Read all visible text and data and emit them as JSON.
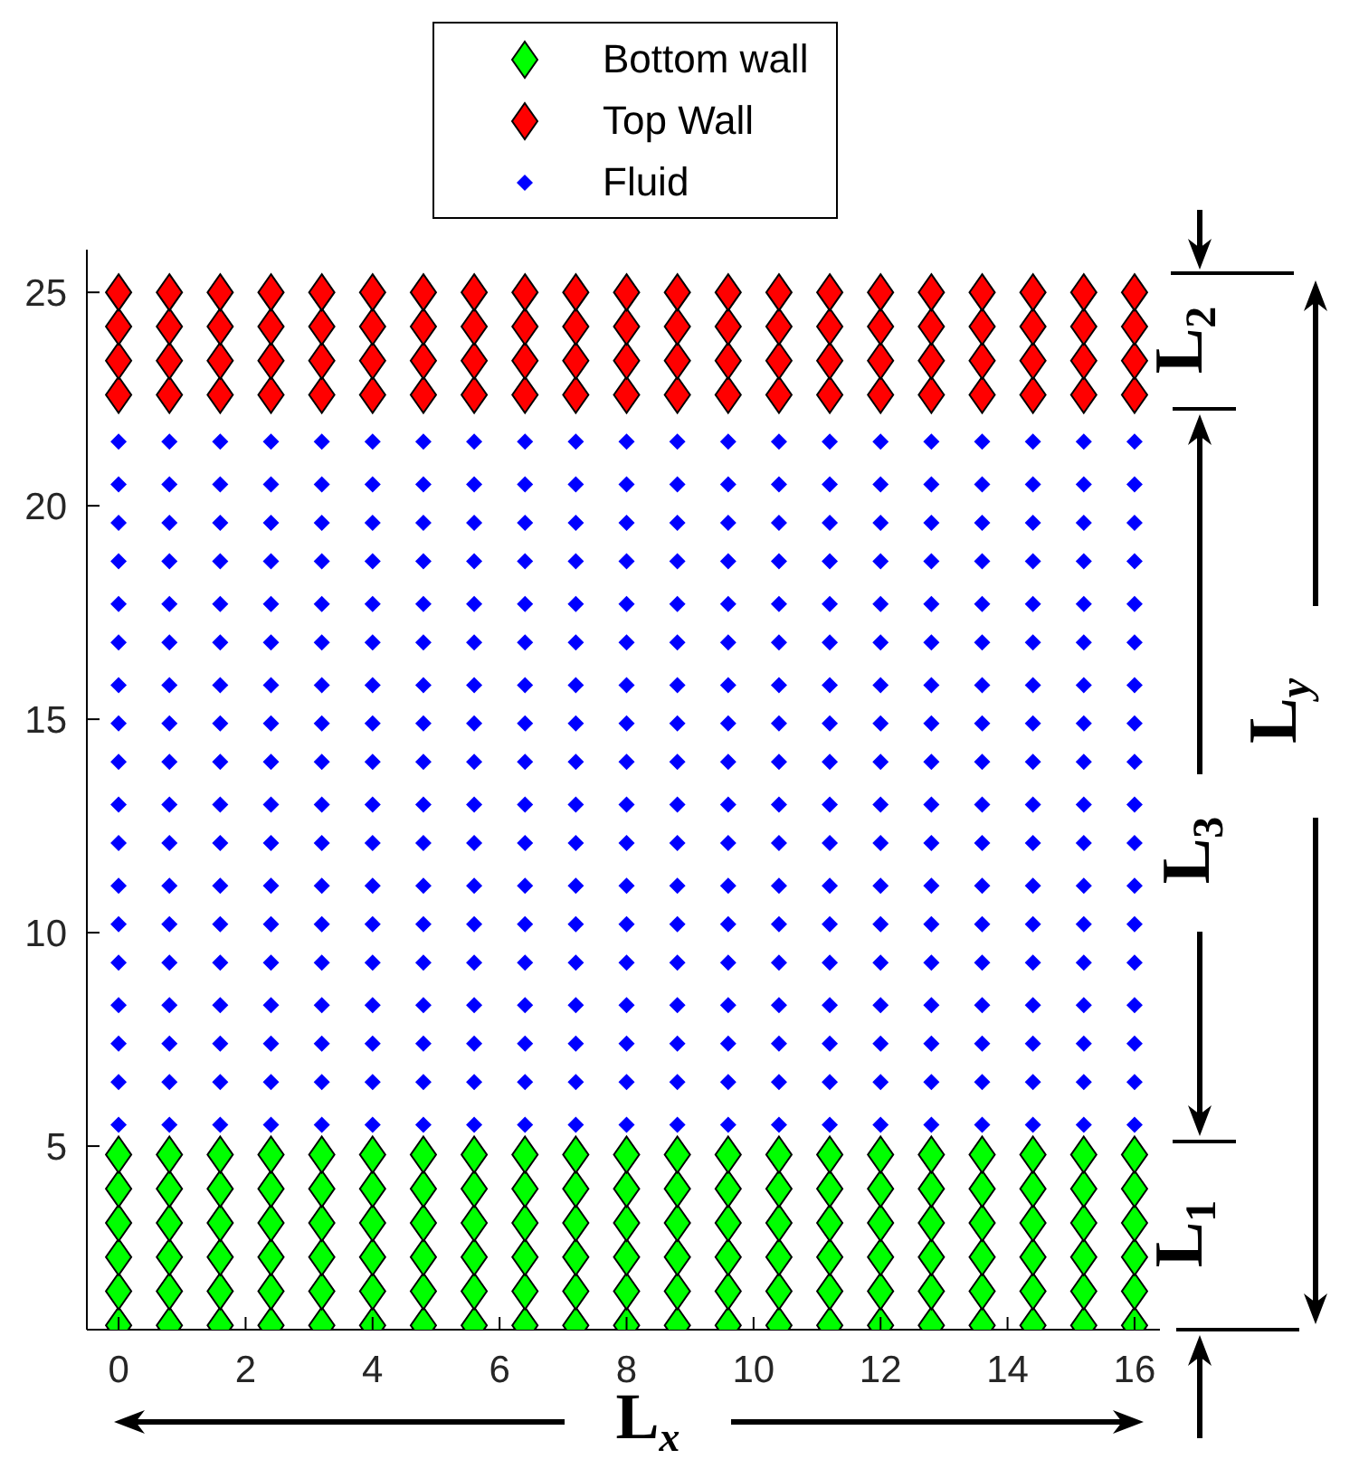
{
  "chart_data": {
    "type": "scatter",
    "legend": "top",
    "marker": "diamond",
    "xlim": [
      -0.5,
      16.4
    ],
    "xticks": [
      0,
      2,
      4,
      6,
      8,
      10,
      12,
      14,
      16
    ],
    "ylim": [
      0.7,
      26
    ],
    "yticks": [
      5,
      10,
      15,
      20,
      25
    ],
    "annotations": [
      "L$_{2}$",
      "L$_{y}$",
      "L$_{3}$",
      "L$_{1}$",
      "L$_{x}$"
    ],
    "series": [
      {
        "name": "Bottom wall",
        "color": "#00ff00",
        "x": [
          0,
          0.8,
          1.6,
          2.4,
          3.2,
          4,
          4.8,
          5.6,
          6.4,
          7.2,
          8,
          8.8,
          9.6,
          10.4,
          11.2,
          12,
          12.8,
          13.6,
          14.4,
          15.2,
          16,
          0,
          0.8,
          1.6,
          2.4,
          3.2,
          4,
          4.8,
          5.6,
          6.4,
          7.2,
          8,
          8.8,
          9.6,
          10.4,
          11.2,
          12,
          12.8,
          13.6,
          14.4,
          15.2,
          16,
          0,
          0.8,
          1.6,
          2.4,
          3.2,
          4,
          4.8,
          5.6,
          6.4,
          7.2,
          8,
          8.8,
          9.6,
          10.4,
          11.2,
          12,
          12.8,
          13.6,
          14.4,
          15.2,
          16,
          0,
          0.8,
          1.6,
          2.4,
          3.2,
          4,
          4.8,
          5.6,
          6.4,
          7.2,
          8,
          8.8,
          9.6,
          10.4,
          11.2,
          12,
          12.8,
          13.6,
          14.4,
          15.2,
          16,
          0,
          0.8,
          1.6,
          2.4,
          3.2,
          4,
          4.8,
          5.6,
          6.4,
          7.2,
          8,
          8.8,
          9.6,
          10.4,
          11.2,
          12,
          12.8,
          13.6,
          14.4,
          15.2,
          16,
          0,
          0.8,
          1.6,
          2.4,
          3.2,
          4,
          4.8,
          5.6,
          6.4,
          7.2,
          8,
          8.8,
          9.6,
          10.4,
          11.2,
          12,
          12.8,
          13.6,
          14.4,
          15.2,
          16
        ],
        "values": [
          0.8,
          0.8,
          0.8,
          0.8,
          0.8,
          0.8,
          0.8,
          0.8,
          0.8,
          0.8,
          0.8,
          0.8,
          0.8,
          0.8,
          0.8,
          0.8,
          0.8,
          0.8,
          0.8,
          0.8,
          0.8,
          1.6,
          1.6,
          1.6,
          1.6,
          1.6,
          1.6,
          1.6,
          1.6,
          1.6,
          1.6,
          1.6,
          1.6,
          1.6,
          1.6,
          1.6,
          1.6,
          1.6,
          1.6,
          1.6,
          1.6,
          1.6,
          2.4,
          2.4,
          2.4,
          2.4,
          2.4,
          2.4,
          2.4,
          2.4,
          2.4,
          2.4,
          2.4,
          2.4,
          2.4,
          2.4,
          2.4,
          2.4,
          2.4,
          2.4,
          2.4,
          2.4,
          2.4,
          3.2,
          3.2,
          3.2,
          3.2,
          3.2,
          3.2,
          3.2,
          3.2,
          3.2,
          3.2,
          3.2,
          3.2,
          3.2,
          3.2,
          3.2,
          3.2,
          3.2,
          3.2,
          3.2,
          3.2,
          3.2,
          4,
          4,
          4,
          4,
          4,
          4,
          4,
          4,
          4,
          4,
          4,
          4,
          4,
          4,
          4,
          4,
          4,
          4,
          4,
          4,
          4,
          4.8,
          4.8,
          4.8,
          4.8,
          4.8,
          4.8,
          4.8,
          4.8,
          4.8,
          4.8,
          4.8,
          4.8,
          4.8,
          4.8,
          4.8,
          4.8,
          4.8,
          4.8,
          4.8,
          4.8,
          4.8
        ]
      },
      {
        "name": "Top Wall",
        "color": "#ff0000",
        "x": [
          0,
          0.8,
          1.6,
          2.4,
          3.2,
          4,
          4.8,
          5.6,
          6.4,
          7.2,
          8,
          8.8,
          9.6,
          10.4,
          11.2,
          12,
          12.8,
          13.6,
          14.4,
          15.2,
          16,
          0,
          0.8,
          1.6,
          2.4,
          3.2,
          4,
          4.8,
          5.6,
          6.4,
          7.2,
          8,
          8.8,
          9.6,
          10.4,
          11.2,
          12,
          12.8,
          13.6,
          14.4,
          15.2,
          16,
          0,
          0.8,
          1.6,
          2.4,
          3.2,
          4,
          4.8,
          5.6,
          6.4,
          7.2,
          8,
          8.8,
          9.6,
          10.4,
          11.2,
          12,
          12.8,
          13.6,
          14.4,
          15.2,
          16,
          0,
          0.8,
          1.6,
          2.4,
          3.2,
          4,
          4.8,
          5.6,
          6.4,
          7.2,
          8,
          8.8,
          9.6,
          10.4,
          11.2,
          12,
          12.8,
          13.6,
          14.4,
          15.2,
          16
        ],
        "values": [
          22.6,
          22.6,
          22.6,
          22.6,
          22.6,
          22.6,
          22.6,
          22.6,
          22.6,
          22.6,
          22.6,
          22.6,
          22.6,
          22.6,
          22.6,
          22.6,
          22.6,
          22.6,
          22.6,
          22.6,
          22.6,
          23.4,
          23.4,
          23.4,
          23.4,
          23.4,
          23.4,
          23.4,
          23.4,
          23.4,
          23.4,
          23.4,
          23.4,
          23.4,
          23.4,
          23.4,
          23.4,
          23.4,
          23.4,
          23.4,
          23.4,
          23.4,
          24.2,
          24.2,
          24.2,
          24.2,
          24.2,
          24.2,
          24.2,
          24.2,
          24.2,
          24.2,
          24.2,
          24.2,
          24.2,
          24.2,
          24.2,
          24.2,
          24.2,
          24.2,
          24.2,
          24.2,
          24.2,
          25,
          25,
          25,
          25,
          25,
          25,
          25,
          25,
          25,
          25,
          25,
          25,
          25,
          25,
          25,
          25,
          25,
          25,
          25,
          25,
          25
        ]
      },
      {
        "name": "Fluid",
        "color": "#0000ff",
        "x": [
          0,
          0.8,
          1.6,
          2.4,
          3.2,
          4,
          4.8,
          5.6,
          6.4,
          7.2,
          8,
          8.8,
          9.6,
          10.4,
          11.2,
          12,
          12.8,
          13.6,
          14.4,
          15.2,
          16,
          0,
          0.8,
          1.6,
          2.4,
          3.2,
          4,
          4.8,
          5.6,
          6.4,
          7.2,
          8,
          8.8,
          9.6,
          10.4,
          11.2,
          12,
          12.8,
          13.6,
          14.4,
          15.2,
          16,
          0,
          0.8,
          1.6,
          2.4,
          3.2,
          4,
          4.8,
          5.6,
          6.4,
          7.2,
          8,
          8.8,
          9.6,
          10.4,
          11.2,
          12,
          12.8,
          13.6,
          14.4,
          15.2,
          16,
          0,
          0.8,
          1.6,
          2.4,
          3.2,
          4,
          4.8,
          5.6,
          6.4,
          7.2,
          8,
          8.8,
          9.6,
          10.4,
          11.2,
          12,
          12.8,
          13.6,
          14.4,
          15.2,
          16,
          0,
          0.8,
          1.6,
          2.4,
          3.2,
          4,
          4.8,
          5.6,
          6.4,
          7.2,
          8,
          8.8,
          9.6,
          10.4,
          11.2,
          12,
          12.8,
          13.6,
          14.4,
          15.2,
          16,
          0,
          0.8,
          1.6,
          2.4,
          3.2,
          4,
          4.8,
          5.6,
          6.4,
          7.2,
          8,
          8.8,
          9.6,
          10.4,
          11.2,
          12,
          12.8,
          13.6,
          14.4,
          15.2,
          16,
          0,
          0.8,
          1.6,
          2.4,
          3.2,
          4,
          4.8,
          5.6,
          6.4,
          7.2,
          8,
          8.8,
          9.6,
          10.4,
          11.2,
          12,
          12.8,
          13.6,
          14.4,
          15.2,
          16,
          0,
          0.8,
          1.6,
          2.4,
          3.2,
          4,
          4.8,
          5.6,
          6.4,
          7.2,
          8,
          8.8,
          9.6,
          10.4,
          11.2,
          12,
          12.8,
          13.6,
          14.4,
          15.2,
          16,
          0,
          0.8,
          1.6,
          2.4,
          3.2,
          4,
          4.8,
          5.6,
          6.4,
          7.2,
          8,
          8.8,
          9.6,
          10.4,
          11.2,
          12,
          12.8,
          13.6,
          14.4,
          15.2,
          16,
          0,
          0.8,
          1.6,
          2.4,
          3.2,
          4,
          4.8,
          5.6,
          6.4,
          7.2,
          8,
          8.8,
          9.6,
          10.4,
          11.2,
          12,
          12.8,
          13.6,
          14.4,
          15.2,
          16,
          0,
          0.8,
          1.6,
          2.4,
          3.2,
          4,
          4.8,
          5.6,
          6.4,
          7.2,
          8,
          8.8,
          9.6,
          10.4,
          11.2,
          12,
          12.8,
          13.6,
          14.4,
          15.2,
          16,
          0,
          0.8,
          1.6,
          2.4,
          3.2,
          4,
          4.8,
          5.6,
          6.4,
          7.2,
          8,
          8.8,
          9.6,
          10.4,
          11.2,
          12,
          12.8,
          13.6,
          14.4,
          15.2,
          16,
          0,
          0.8,
          1.6,
          2.4,
          3.2,
          4,
          4.8,
          5.6,
          6.4,
          7.2,
          8,
          8.8,
          9.6,
          10.4,
          11.2,
          12,
          12.8,
          13.6,
          14.4,
          15.2,
          16,
          0,
          0.8,
          1.6,
          2.4,
          3.2,
          4,
          4.8,
          5.6,
          6.4,
          7.2,
          8,
          8.8,
          9.6,
          10.4,
          11.2,
          12,
          12.8,
          13.6,
          14.4,
          15.2,
          16,
          0,
          0.8,
          1.6,
          2.4,
          3.2,
          4,
          4.8,
          5.6,
          6.4,
          7.2,
          8,
          8.8,
          9.6,
          10.4,
          11.2,
          12,
          12.8,
          13.6,
          14.4,
          15.2,
          16,
          0,
          0.8,
          1.6,
          2.4,
          3.2,
          4,
          4.8,
          5.6,
          6.4,
          7.2,
          8,
          8.8,
          9.6,
          10.4,
          11.2,
          12,
          12.8,
          13.6,
          14.4,
          15.2,
          16,
          0,
          0.8,
          1.6,
          2.4,
          3.2,
          4,
          4.8,
          5.6,
          6.4,
          7.2,
          8,
          8.8,
          9.6,
          10.4,
          11.2,
          12,
          12.8,
          13.6,
          14.4,
          15.2,
          16,
          0,
          0.8,
          1.6,
          2.4,
          3.2,
          4,
          4.8,
          5.6,
          6.4,
          7.2,
          8,
          8.8,
          9.6,
          10.4,
          11.2,
          12,
          12.8,
          13.6,
          14.4,
          15.2,
          16
        ],
        "values": [
          5.5,
          5.5,
          5.5,
          5.5,
          5.5,
          5.5,
          5.5,
          5.5,
          5.5,
          5.5,
          5.5,
          5.5,
          5.5,
          5.5,
          5.5,
          5.5,
          5.5,
          5.5,
          5.5,
          5.5,
          5.5,
          6.5,
          6.5,
          6.5,
          6.5,
          6.5,
          6.5,
          6.5,
          6.5,
          6.5,
          6.5,
          6.5,
          6.5,
          6.5,
          6.5,
          6.5,
          6.5,
          6.5,
          6.5,
          6.5,
          6.5,
          6.5,
          7.4,
          7.4,
          7.4,
          7.4,
          7.4,
          7.4,
          7.4,
          7.4,
          7.4,
          7.4,
          7.4,
          7.4,
          7.4,
          7.4,
          7.4,
          7.4,
          7.4,
          7.4,
          7.4,
          7.4,
          7.4,
          8.3,
          8.3,
          8.3,
          8.3,
          8.3,
          8.3,
          8.3,
          8.3,
          8.3,
          8.3,
          8.3,
          8.3,
          8.3,
          8.3,
          8.3,
          8.3,
          8.3,
          8.3,
          8.3,
          8.3,
          8.3,
          9.3,
          9.3,
          9.3,
          9.3,
          9.3,
          9.3,
          9.3,
          9.3,
          9.3,
          9.3,
          9.3,
          9.3,
          9.3,
          9.3,
          9.3,
          9.3,
          9.3,
          9.3,
          9.3,
          9.3,
          9.3,
          10.2,
          10.2,
          10.2,
          10.2,
          10.2,
          10.2,
          10.2,
          10.2,
          10.2,
          10.2,
          10.2,
          10.2,
          10.2,
          10.2,
          10.2,
          10.2,
          10.2,
          10.2,
          10.2,
          10.2,
          10.2,
          11.1,
          11.1,
          11.1,
          11.1,
          11.1,
          11.1,
          11.1,
          11.1,
          11.1,
          11.1,
          11.1,
          11.1,
          11.1,
          11.1,
          11.1,
          11.1,
          11.1,
          11.1,
          11.1,
          11.1,
          11.1,
          12.1,
          12.1,
          12.1,
          12.1,
          12.1,
          12.1,
          12.1,
          12.1,
          12.1,
          12.1,
          12.1,
          12.1,
          12.1,
          12.1,
          12.1,
          12.1,
          12.1,
          12.1,
          12.1,
          12.1,
          12.1,
          13,
          13,
          13,
          13,
          13,
          13,
          13,
          13,
          13,
          13,
          13,
          13,
          13,
          13,
          13,
          13,
          13,
          13,
          13,
          13,
          13,
          14,
          14,
          14,
          14,
          14,
          14,
          14,
          14,
          14,
          14,
          14,
          14,
          14,
          14,
          14,
          14,
          14,
          14,
          14,
          14,
          14,
          14.9,
          14.9,
          14.9,
          14.9,
          14.9,
          14.9,
          14.9,
          14.9,
          14.9,
          14.9,
          14.9,
          14.9,
          14.9,
          14.9,
          14.9,
          14.9,
          14.9,
          14.9,
          14.9,
          14.9,
          14.9,
          15.8,
          15.8,
          15.8,
          15.8,
          15.8,
          15.8,
          15.8,
          15.8,
          15.8,
          15.8,
          15.8,
          15.8,
          15.8,
          15.8,
          15.8,
          15.8,
          15.8,
          15.8,
          15.8,
          15.8,
          15.8,
          16.8,
          16.8,
          16.8,
          16.8,
          16.8,
          16.8,
          16.8,
          16.8,
          16.8,
          16.8,
          16.8,
          16.8,
          16.8,
          16.8,
          16.8,
          16.8,
          16.8,
          16.8,
          16.8,
          16.8,
          16.8,
          17.7,
          17.7,
          17.7,
          17.7,
          17.7,
          17.7,
          17.7,
          17.7,
          17.7,
          17.7,
          17.7,
          17.7,
          17.7,
          17.7,
          17.7,
          17.7,
          17.7,
          17.7,
          17.7,
          17.7,
          17.7,
          18.7,
          18.7,
          18.7,
          18.7,
          18.7,
          18.7,
          18.7,
          18.7,
          18.7,
          18.7,
          18.7,
          18.7,
          18.7,
          18.7,
          18.7,
          18.7,
          18.7,
          18.7,
          18.7,
          18.7,
          18.7,
          19.6,
          19.6,
          19.6,
          19.6,
          19.6,
          19.6,
          19.6,
          19.6,
          19.6,
          19.6,
          19.6,
          19.6,
          19.6,
          19.6,
          19.6,
          19.6,
          19.6,
          19.6,
          19.6,
          19.6,
          19.6,
          20.5,
          20.5,
          20.5,
          20.5,
          20.5,
          20.5,
          20.5,
          20.5,
          20.5,
          20.5,
          20.5,
          20.5,
          20.5,
          20.5,
          20.5,
          20.5,
          20.5,
          20.5,
          20.5,
          20.5,
          20.5,
          21.5,
          21.5,
          21.5,
          21.5,
          21.5,
          21.5,
          21.5,
          21.5,
          21.5,
          21.5,
          21.5,
          21.5,
          21.5,
          21.5,
          21.5,
          21.5,
          21.5,
          21.5,
          21.5,
          21.5,
          21.5
        ]
      }
    ]
  }
}
